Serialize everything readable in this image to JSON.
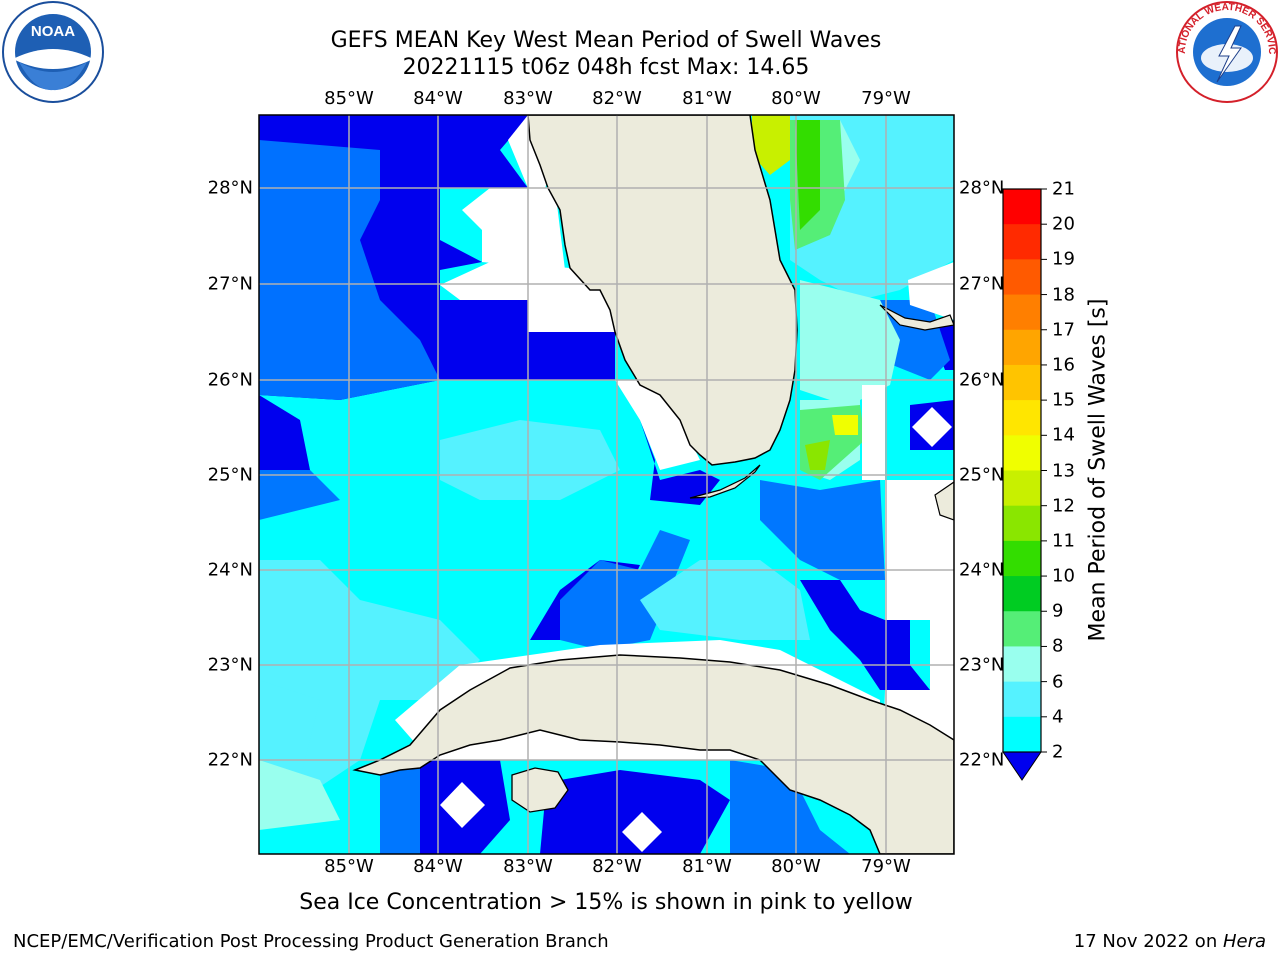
{
  "header": {
    "title_line1": "GEFS MEAN Key West Mean Period of Swell Waves",
    "title_line2": "20221115 t06z 048h fcst   Max: 14.65"
  },
  "map": {
    "lon_labels": [
      "85°W",
      "84°W",
      "83°W",
      "82°W",
      "81°W",
      "80°W",
      "79°W"
    ],
    "lat_labels": [
      "28°N",
      "27°N",
      "26°N",
      "25°N",
      "24°N",
      "23°N",
      "22°N"
    ],
    "extent": {
      "lon_min": -86.0,
      "lon_max": -78.25,
      "lat_min": 21.0,
      "lat_max": 28.75
    },
    "land_color": "#ecebdc",
    "missing_color": "#ffffff",
    "gridline_color": "#b0b0b0"
  },
  "colorbar": {
    "title": "Mean Period of Swell Waves [s]",
    "ticks": [
      "21",
      "20",
      "19",
      "18",
      "17",
      "16",
      "15",
      "14",
      "13",
      "12",
      "11",
      "10",
      "9",
      "8",
      "6",
      "4",
      "2"
    ],
    "colors": [
      "#ff0000",
      "#ff2a00",
      "#ff5a00",
      "#ff7f00",
      "#ffa500",
      "#ffc400",
      "#ffe600",
      "#f0ff00",
      "#c8f000",
      "#8ae600",
      "#33dd00",
      "#00cc22",
      "#55ee77",
      "#99ffee",
      "#55f2ff",
      "#00ffff",
      "#0077ff",
      "#0000ee"
    ]
  },
  "note": "Sea Ice Concentration > 15% is shown in pink to yellow",
  "footer": {
    "left": "NCEP/EMC/Verification Post Processing Product Generation Branch",
    "date": "17 Nov 2022 on ",
    "host": "Hera"
  },
  "logos": {
    "left": "NOAA",
    "right": "NATIONAL WEATHER SERVICE"
  }
}
